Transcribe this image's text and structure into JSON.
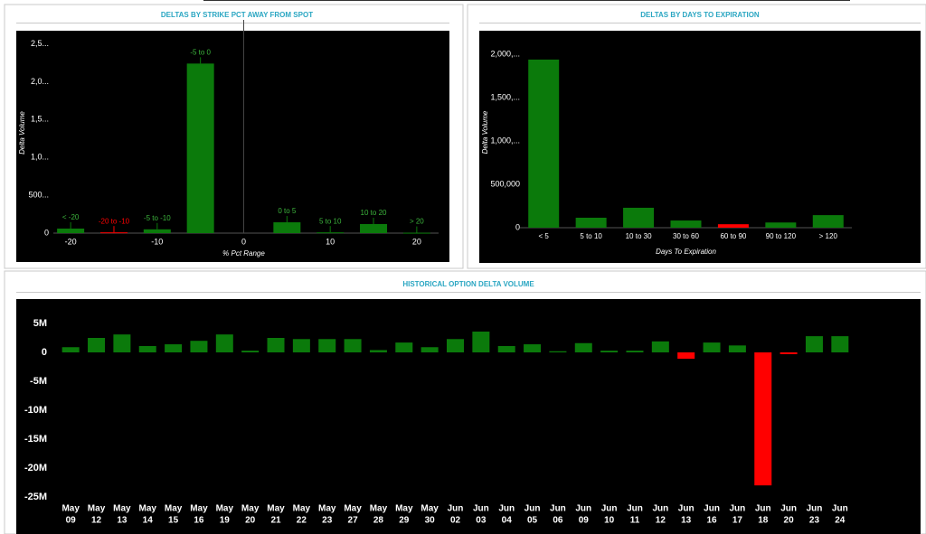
{
  "chart_data": [
    {
      "type": "bar",
      "title": "DELTAS BY STRIKE PCT AWAY FROM SPOT",
      "x_label": "% Pct Range",
      "y_label": "Delta Volume",
      "x": [
        -20,
        -15,
        -10,
        -5,
        5,
        10,
        15,
        20
      ],
      "labels": [
        "< -20",
        "-20 to -10",
        "-5 to -10",
        "-5 to 0",
        "0 to 5",
        "5 to 10",
        "10 to 20",
        "> 20"
      ],
      "values": [
        60000,
        10000,
        50000,
        2240000,
        143000,
        10000,
        120000,
        5000
      ],
      "colors": [
        "#0b7a0b",
        "#ff0000",
        "#0b7a0b",
        "#0b7a0b",
        "#0b7a0b",
        "#0b7a0b",
        "#0b7a0b",
        "#0b7a0b"
      ],
      "xlim": [
        -22,
        22
      ],
      "xticks": [
        -20,
        -10,
        0,
        10,
        20
      ],
      "ylim": [
        0,
        2650000
      ],
      "yticks": [
        0,
        {
          "value": 500000,
          "label": "500..."
        },
        {
          "value": 1000000,
          "label": "1,0..."
        },
        {
          "value": 1500000,
          "label": "1,5..."
        },
        {
          "value": 2000000,
          "label": "2,0..."
        },
        {
          "value": 2500000,
          "label": "2,5..."
        }
      ]
    },
    {
      "type": "bar",
      "title": "DELTAS BY DAYS TO EXPIRATION",
      "x_label": "Days To Expiration",
      "y_label": "Delta Volume",
      "categories": [
        "< 5",
        "5 to 10",
        "10 to 30",
        "30 to 60",
        "60 to 90",
        "90 to 120",
        "> 120"
      ],
      "values": [
        1940000,
        115000,
        230000,
        83000,
        40000,
        60000,
        145000
      ],
      "colors": [
        "#0b7a0b",
        "#0b7a0b",
        "#0b7a0b",
        "#0b7a0b",
        "#ff0000",
        "#0b7a0b",
        "#0b7a0b"
      ],
      "ylim": [
        0,
        2200000
      ],
      "yticks": [
        0,
        {
          "value": 500000,
          "label": "500,000"
        },
        {
          "value": 1000000,
          "label": "1,000,..."
        },
        {
          "value": 1500000,
          "label": "1,500,..."
        },
        {
          "value": 2000000,
          "label": "2,000,..."
        }
      ]
    },
    {
      "type": "bar",
      "title": "HISTORICAL OPTION DELTA VOLUME",
      "categories": [
        [
          "May",
          "09"
        ],
        [
          "May",
          "12"
        ],
        [
          "May",
          "13"
        ],
        [
          "May",
          "14"
        ],
        [
          "May",
          "15"
        ],
        [
          "May",
          "16"
        ],
        [
          "May",
          "19"
        ],
        [
          "May",
          "20"
        ],
        [
          "May",
          "21"
        ],
        [
          "May",
          "22"
        ],
        [
          "May",
          "23"
        ],
        [
          "May",
          "27"
        ],
        [
          "May",
          "28"
        ],
        [
          "May",
          "29"
        ],
        [
          "May",
          "30"
        ],
        [
          "Jun",
          "02"
        ],
        [
          "Jun",
          "03"
        ],
        [
          "Jun",
          "04"
        ],
        [
          "Jun",
          "05"
        ],
        [
          "Jun",
          "06"
        ],
        [
          "Jun",
          "09"
        ],
        [
          "Jun",
          "10"
        ],
        [
          "Jun",
          "11"
        ],
        [
          "Jun",
          "12"
        ],
        [
          "Jun",
          "13"
        ],
        [
          "Jun",
          "16"
        ],
        [
          "Jun",
          "17"
        ],
        [
          "Jun",
          "18"
        ],
        [
          "Jun",
          "20"
        ],
        [
          "Jun",
          "23"
        ],
        [
          "Jun",
          "24"
        ]
      ],
      "values": [
        900000,
        2500000,
        3100000,
        1100000,
        1400000,
        2000000,
        3100000,
        300000,
        2500000,
        2300000,
        2300000,
        2300000,
        400000,
        1700000,
        900000,
        2300000,
        3600000,
        1100000,
        1400000,
        200000,
        1600000,
        300000,
        300000,
        1900000,
        -1100000,
        1700000,
        1200000,
        -23000000,
        -300000,
        2800000,
        2800000
      ],
      "positive_color": "#0b7a0b",
      "negative_color": "#ff0000",
      "ylim": [
        -26000000,
        9000000
      ],
      "yticks": [
        {
          "value": 5000000,
          "label": "5M"
        },
        0,
        {
          "value": -5000000,
          "label": "-5M"
        },
        {
          "value": -10000000,
          "label": "-10M"
        },
        {
          "value": -15000000,
          "label": "-15M"
        },
        {
          "value": -20000000,
          "label": "-20M"
        },
        {
          "value": -25000000,
          "label": "-25M"
        }
      ]
    }
  ]
}
